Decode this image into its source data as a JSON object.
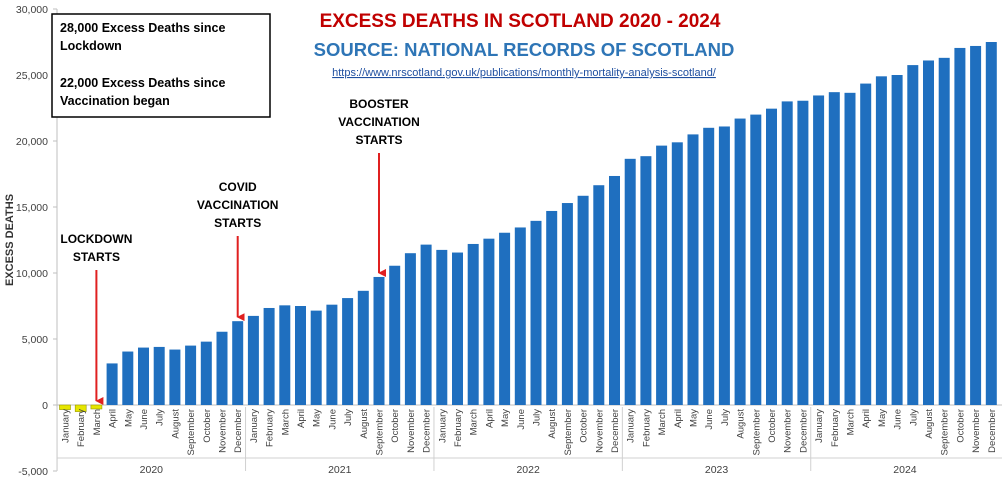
{
  "chart_data": {
    "type": "bar",
    "title": "EXCESS DEATHS IN SCOTLAND 2020 - 2024",
    "subtitle": "SOURCE: NATIONAL RECORDS OF SCOTLAND",
    "source_url": "https://www.nrscotland.gov.uk/publications/monthly-mortality-analysis-scotland/",
    "ylabel": "EXCESS DEATHS",
    "ylim": [
      -5000,
      30000
    ],
    "yticks": [
      -5000,
      0,
      5000,
      10000,
      15000,
      20000,
      25000,
      30000
    ],
    "ytick_labels": [
      "-5,000",
      "0",
      "5,000",
      "10,000",
      "15,000",
      "20,000",
      "25,000",
      "30,000"
    ],
    "grid": false,
    "colors": {
      "bar": "#1f6fbf",
      "negative_bar": "#e6e600",
      "title": "#c00000",
      "subtitle": "#2e75b6",
      "arrow": "#e02020"
    },
    "info_box": {
      "line1": "28,000 Excess Deaths since",
      "line2": "Lockdown",
      "line3": "22,000 Excess Deaths since",
      "line4": "Vaccination began"
    },
    "years": [
      "2020",
      "2021",
      "2022",
      "2023",
      "2024"
    ],
    "categories": [
      "January",
      "February",
      "March",
      "April",
      "May",
      "June",
      "July",
      "August",
      "September",
      "October",
      "November",
      "December",
      "January",
      "February",
      "March",
      "April",
      "May",
      "June",
      "July",
      "August",
      "September",
      "October",
      "November",
      "December",
      "January",
      "February",
      "March",
      "April",
      "May",
      "June",
      "July",
      "August",
      "September",
      "October",
      "November",
      "December",
      "January",
      "February",
      "March",
      "April",
      "May",
      "June",
      "July",
      "August",
      "September",
      "October",
      "November",
      "December",
      "January",
      "February",
      "March",
      "April",
      "May",
      "June",
      "July",
      "August",
      "September",
      "October",
      "November",
      "December"
    ],
    "values": [
      -350,
      -500,
      -300,
      3150,
      4050,
      4350,
      4400,
      4200,
      4500,
      4800,
      5550,
      6350,
      6750,
      7350,
      7550,
      7500,
      7150,
      7600,
      8100,
      8650,
      9700,
      10550,
      11500,
      12150,
      11750,
      11550,
      12200,
      12600,
      13050,
      13450,
      13950,
      14700,
      15300,
      15850,
      16650,
      17350,
      18650,
      18850,
      19650,
      19900,
      20500,
      21000,
      21100,
      21700,
      22000,
      22450,
      23000,
      23050,
      23450,
      23700,
      23650,
      24350,
      24900,
      25000,
      25750,
      26100,
      26300,
      27050,
      27200,
      27500
    ],
    "annotations": [
      {
        "lines": [
          "LOCKDOWN",
          "STARTS"
        ],
        "index": 2
      },
      {
        "lines": [
          "COVID",
          "VACCINATION",
          "STARTS"
        ],
        "index": 11
      },
      {
        "lines": [
          "BOOSTER",
          "VACCINATION",
          "STARTS"
        ],
        "index": 20
      }
    ]
  }
}
